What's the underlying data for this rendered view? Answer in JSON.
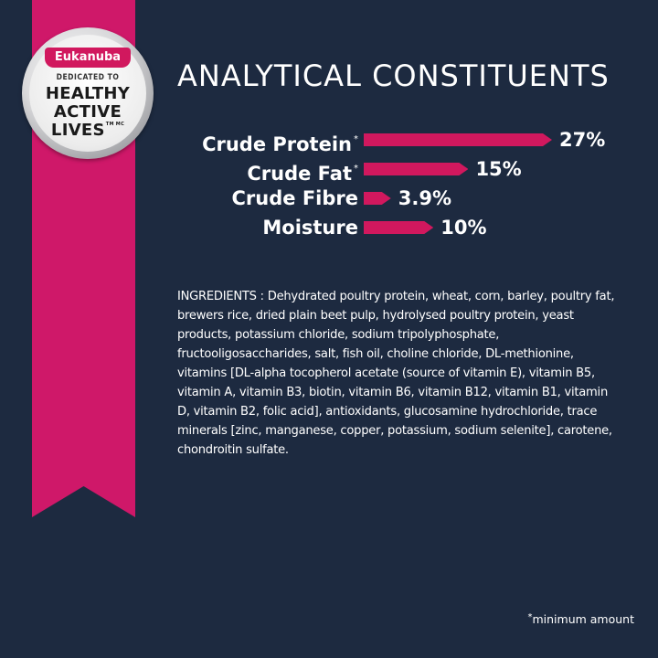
{
  "badge": {
    "brand": "Eukanuba",
    "dedicated": "DEDICATED TO",
    "line1": "HEALTHY",
    "line2": "ACTIVE",
    "line3": "LIVES",
    "tm": "TM MC"
  },
  "title": "ANALYTICAL CONSTITUENTS",
  "constituents": [
    {
      "label": "Crude Protein",
      "asterisk": "*",
      "value": "27%",
      "percent": 27
    },
    {
      "label": "Crude Fat",
      "asterisk": "*",
      "value": "15%",
      "percent": 15
    },
    {
      "label": "Crude Fibre",
      "asterisk": "",
      "value": "3.9%",
      "percent": 3.9
    },
    {
      "label": "Moisture",
      "asterisk": "",
      "value": "10%",
      "percent": 10
    }
  ],
  "ingredients": "INGREDIENTS : Dehydrated poultry protein, wheat, corn, barley, poultry fat, brewers rice, dried plain beet pulp, hydrolysed poultry protein, yeast products, potassium chloride, sodium tripolyphosphate, fructooligosaccharides, salt, fish oil, choline chloride, DL-methionine, vitamins [DL-alpha tocopherol acetate (source of vitamin E), vitamin B5, vitamin A, vitamin B3, biotin, vitamin B6, vitamin B12, vitamin B1, vitamin D, vitamin B2, folic acid], antioxidants, glucosamine hydrochloride, trace minerals [zinc, manganese, copper, potassium, sodium selenite], carotene, chondroitin sulfate.",
  "footnote": {
    "asterisk": "*",
    "text": "minimum amount"
  },
  "colors": {
    "background": "#1d2a40",
    "accent": "#d1185e"
  }
}
